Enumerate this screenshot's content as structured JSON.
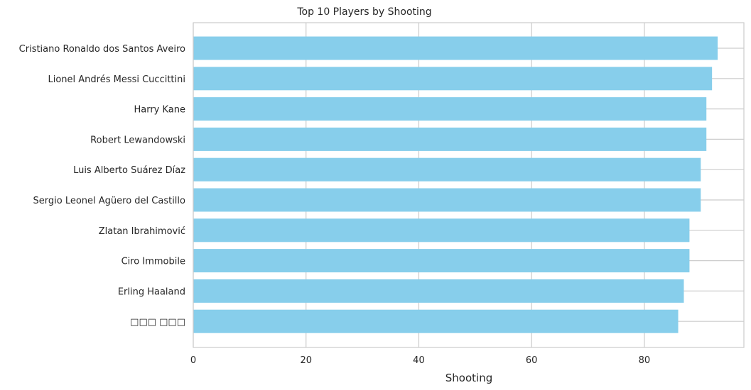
{
  "chart_data": {
    "type": "bar",
    "orientation": "horizontal",
    "title": "Top 10 Players by Shooting",
    "xlabel": "Shooting",
    "ylabel": "",
    "categories": [
      "Cristiano Ronaldo dos Santos Aveiro",
      "Lionel Andrés Messi Cuccittini",
      "Harry Kane",
      "Robert Lewandowski",
      "Luis Alberto Suárez Díaz",
      "Sergio Leonel Agüero del Castillo",
      "Zlatan Ibrahimović",
      "Ciro Immobile",
      "Erling Haaland",
      "□□□ □□□"
    ],
    "values": [
      93,
      92,
      91,
      91,
      90,
      90,
      88,
      88,
      87,
      86
    ],
    "xlim": [
      0,
      97.65
    ],
    "xticks": [
      0,
      20,
      40,
      60,
      80
    ],
    "grid": true,
    "bar_color": "#87CEEB"
  }
}
